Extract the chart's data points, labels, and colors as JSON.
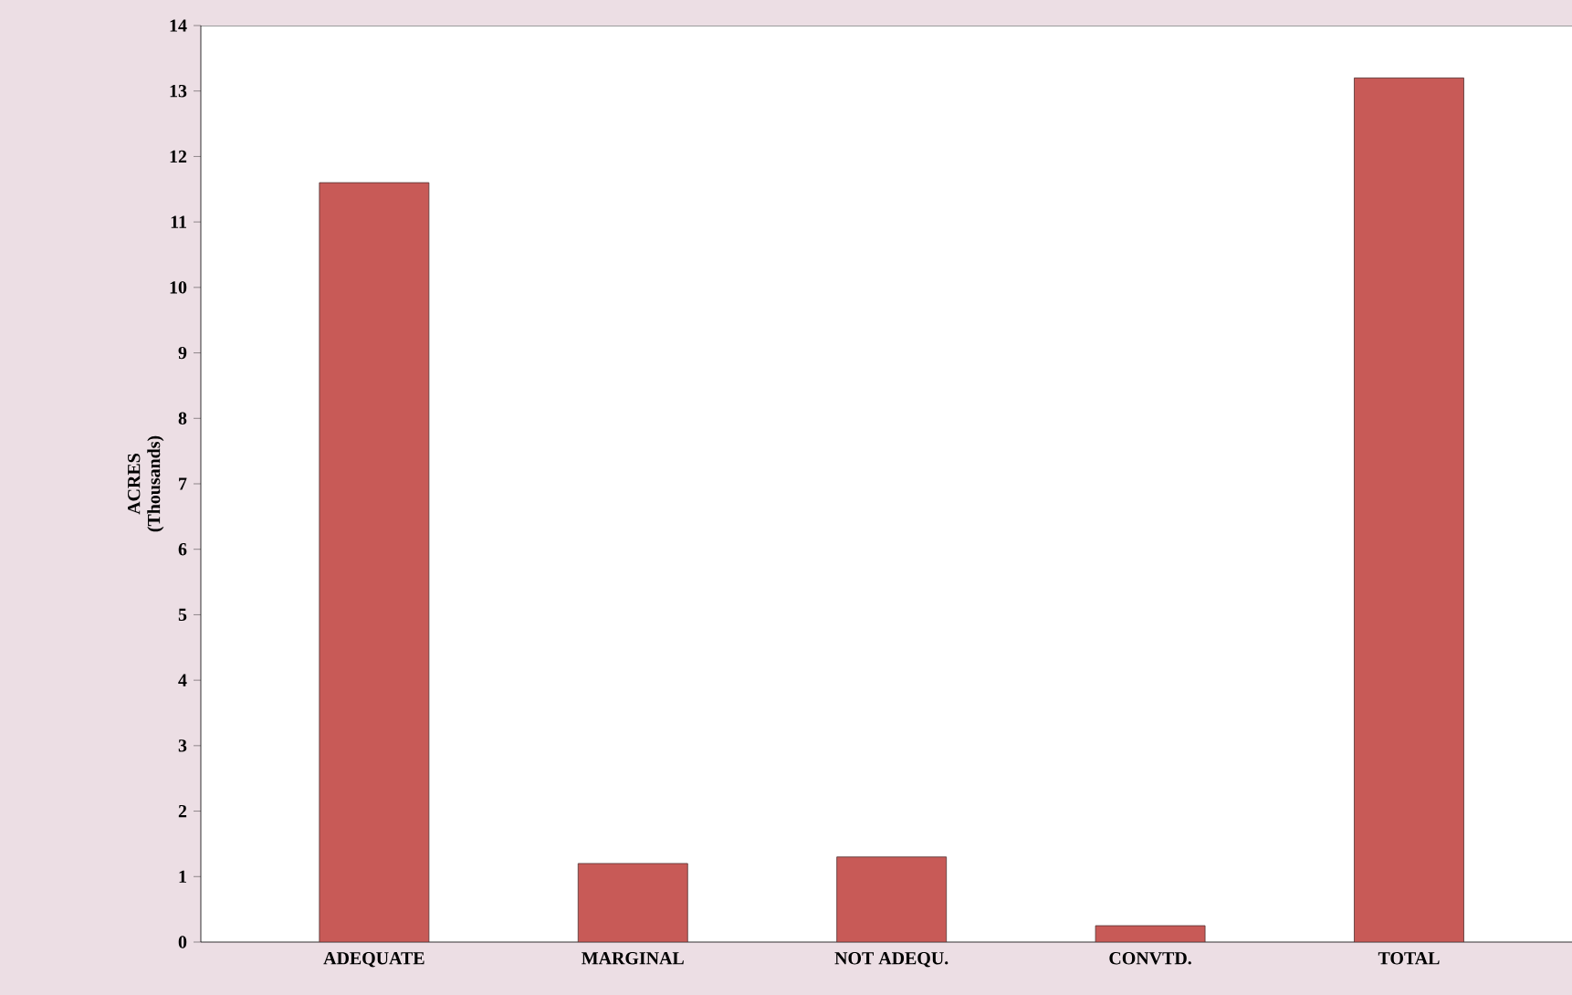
{
  "chart_data": {
    "type": "bar",
    "ylabel": "ACRES (Thousands)",
    "categories": [
      "ADEQUATE",
      "MARGINAL",
      "NOT ADEQU.",
      "CONVTD.",
      "TOTAL"
    ],
    "values": [
      11.6,
      1.2,
      1.3,
      0.25,
      13.2
    ],
    "color": "#c85a57",
    "ylim": [
      0,
      14
    ],
    "yticks": [
      0,
      1,
      2,
      3,
      4,
      5,
      6,
      7,
      8,
      9,
      10,
      11,
      12,
      13,
      14
    ],
    "grid": false
  }
}
